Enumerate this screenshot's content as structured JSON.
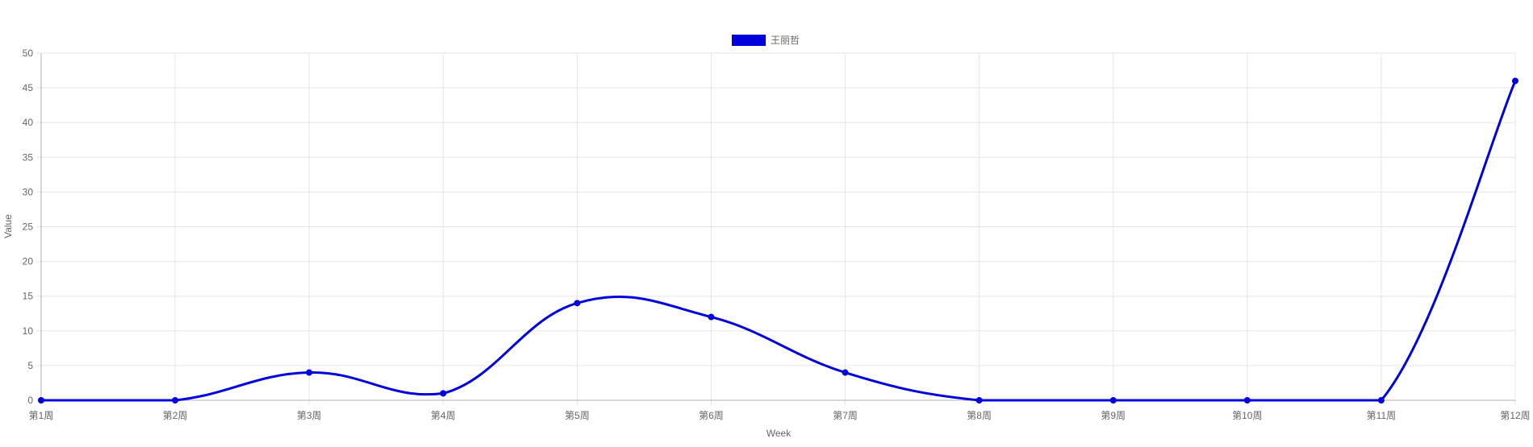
{
  "chart_data": {
    "type": "line",
    "title": "",
    "xlabel": "Week",
    "ylabel": "Value",
    "categories": [
      "第1周",
      "第2周",
      "第3周",
      "第4周",
      "第5周",
      "第6周",
      "第7周",
      "第8周",
      "第9周",
      "第10周",
      "第11周",
      "第12周"
    ],
    "series": [
      {
        "name": "王丽哲",
        "color": "#0000dd",
        "values": [
          0,
          0,
          4,
          1,
          14,
          12,
          4,
          0,
          0,
          0,
          0,
          46
        ]
      }
    ],
    "ylim": [
      0,
      50
    ],
    "yticks": [
      0,
      5,
      10,
      15,
      20,
      25,
      30,
      35,
      40,
      45,
      50
    ],
    "grid": true,
    "legend_position": "top-center",
    "smooth": true
  }
}
